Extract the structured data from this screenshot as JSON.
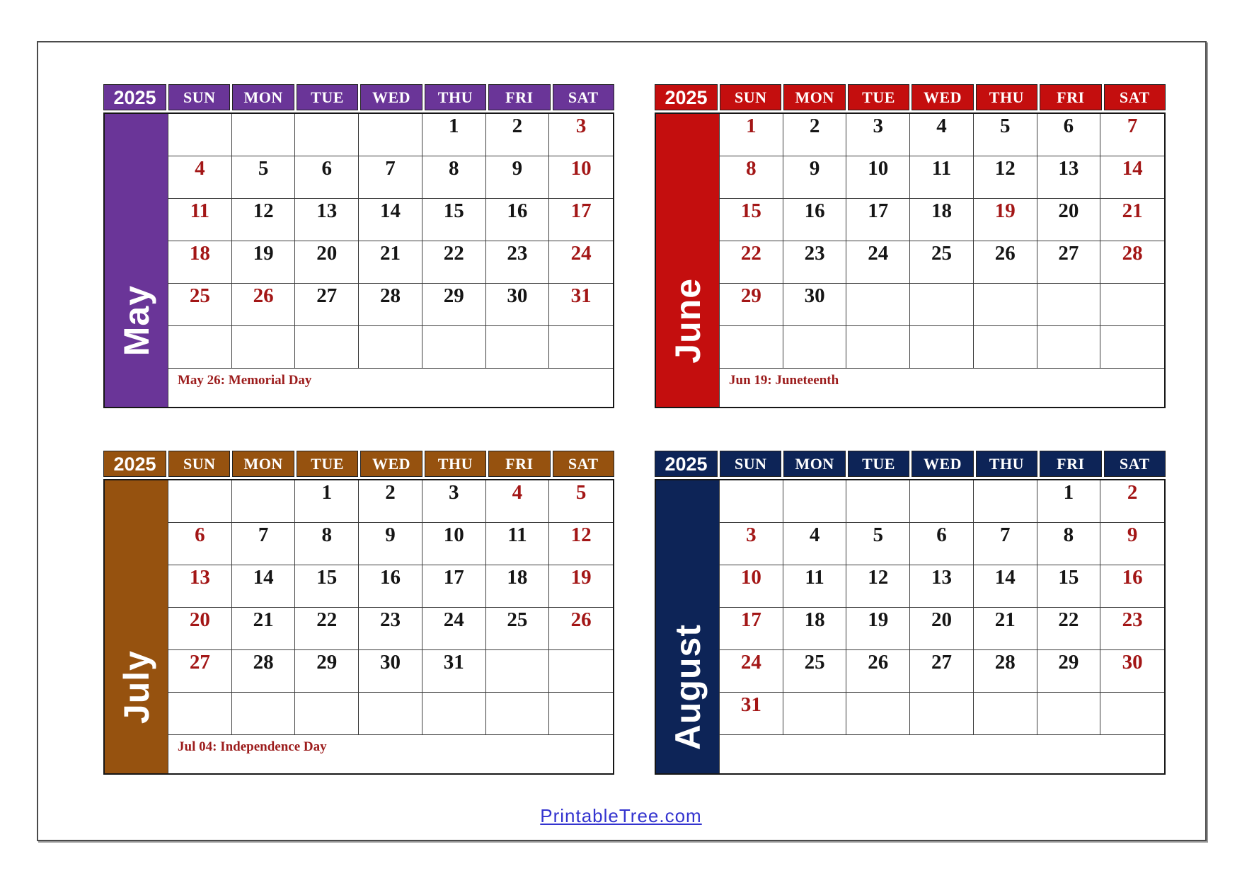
{
  "page": {
    "footer_link": "PrintableTree.com"
  },
  "colors": {
    "weekend_date": "#a31616",
    "weekday_date": "#151515",
    "note_text": "#9c1c1c",
    "link": "#3434cf",
    "grid_line": "#3c3c3c"
  },
  "calendars": [
    {
      "month": "May",
      "year": "2025",
      "accent": "#6a3598",
      "note": "May 26: Memorial Day",
      "day_headers": [
        "SUN",
        "MON",
        "TUE",
        "WED",
        "THU",
        "FRI",
        "SAT"
      ],
      "weeks": [
        [
          "",
          "",
          "",
          "",
          "1",
          "2",
          "3"
        ],
        [
          "4",
          "5",
          "6",
          "7",
          "8",
          "9",
          "10"
        ],
        [
          "11",
          "12",
          "13",
          "14",
          "15",
          "16",
          "17"
        ],
        [
          "18",
          "19",
          "20",
          "21",
          "22",
          "23",
          "24"
        ],
        [
          "25",
          "26",
          "27",
          "28",
          "29",
          "30",
          "31"
        ],
        [
          "",
          "",
          "",
          "",
          "",
          "",
          ""
        ]
      ],
      "red_dates": [
        "3",
        "4",
        "10",
        "11",
        "17",
        "18",
        "24",
        "25",
        "26",
        "31"
      ]
    },
    {
      "month": "June",
      "year": "2025",
      "accent": "#c40e0e",
      "note": "Jun 19: Juneteenth",
      "day_headers": [
        "SUN",
        "MON",
        "TUE",
        "WED",
        "THU",
        "FRI",
        "SAT"
      ],
      "weeks": [
        [
          "1",
          "2",
          "3",
          "4",
          "5",
          "6",
          "7"
        ],
        [
          "8",
          "9",
          "10",
          "11",
          "12",
          "13",
          "14"
        ],
        [
          "15",
          "16",
          "17",
          "18",
          "19",
          "20",
          "21"
        ],
        [
          "22",
          "23",
          "24",
          "25",
          "26",
          "27",
          "28"
        ],
        [
          "29",
          "30",
          "",
          "",
          "",
          "",
          ""
        ],
        [
          "",
          "",
          "",
          "",
          "",
          "",
          ""
        ]
      ],
      "red_dates": [
        "1",
        "7",
        "8",
        "14",
        "15",
        "19",
        "21",
        "22",
        "28",
        "29"
      ]
    },
    {
      "month": "July",
      "year": "2025",
      "accent": "#96520f",
      "note": "Jul 04: Independence Day",
      "day_headers": [
        "SUN",
        "MON",
        "TUE",
        "WED",
        "THU",
        "FRI",
        "SAT"
      ],
      "weeks": [
        [
          "",
          "",
          "1",
          "2",
          "3",
          "4",
          "5"
        ],
        [
          "6",
          "7",
          "8",
          "9",
          "10",
          "11",
          "12"
        ],
        [
          "13",
          "14",
          "15",
          "16",
          "17",
          "18",
          "19"
        ],
        [
          "20",
          "21",
          "22",
          "23",
          "24",
          "25",
          "26"
        ],
        [
          "27",
          "28",
          "29",
          "30",
          "31",
          "",
          ""
        ],
        [
          "",
          "",
          "",
          "",
          "",
          "",
          ""
        ]
      ],
      "red_dates": [
        "4",
        "5",
        "6",
        "12",
        "13",
        "19",
        "20",
        "26",
        "27"
      ]
    },
    {
      "month": "August",
      "year": "2025",
      "accent": "#0d2457",
      "note": "",
      "day_headers": [
        "SUN",
        "MON",
        "TUE",
        "WED",
        "THU",
        "FRI",
        "SAT"
      ],
      "weeks": [
        [
          "",
          "",
          "",
          "",
          "",
          "1",
          "2"
        ],
        [
          "3",
          "4",
          "5",
          "6",
          "7",
          "8",
          "9"
        ],
        [
          "10",
          "11",
          "12",
          "13",
          "14",
          "15",
          "16"
        ],
        [
          "17",
          "18",
          "19",
          "20",
          "21",
          "22",
          "23"
        ],
        [
          "24",
          "25",
          "26",
          "27",
          "28",
          "29",
          "30"
        ],
        [
          "31",
          "",
          "",
          "",
          "",
          "",
          ""
        ]
      ],
      "red_dates": [
        "2",
        "3",
        "9",
        "10",
        "16",
        "17",
        "23",
        "24",
        "30",
        "31"
      ]
    }
  ]
}
